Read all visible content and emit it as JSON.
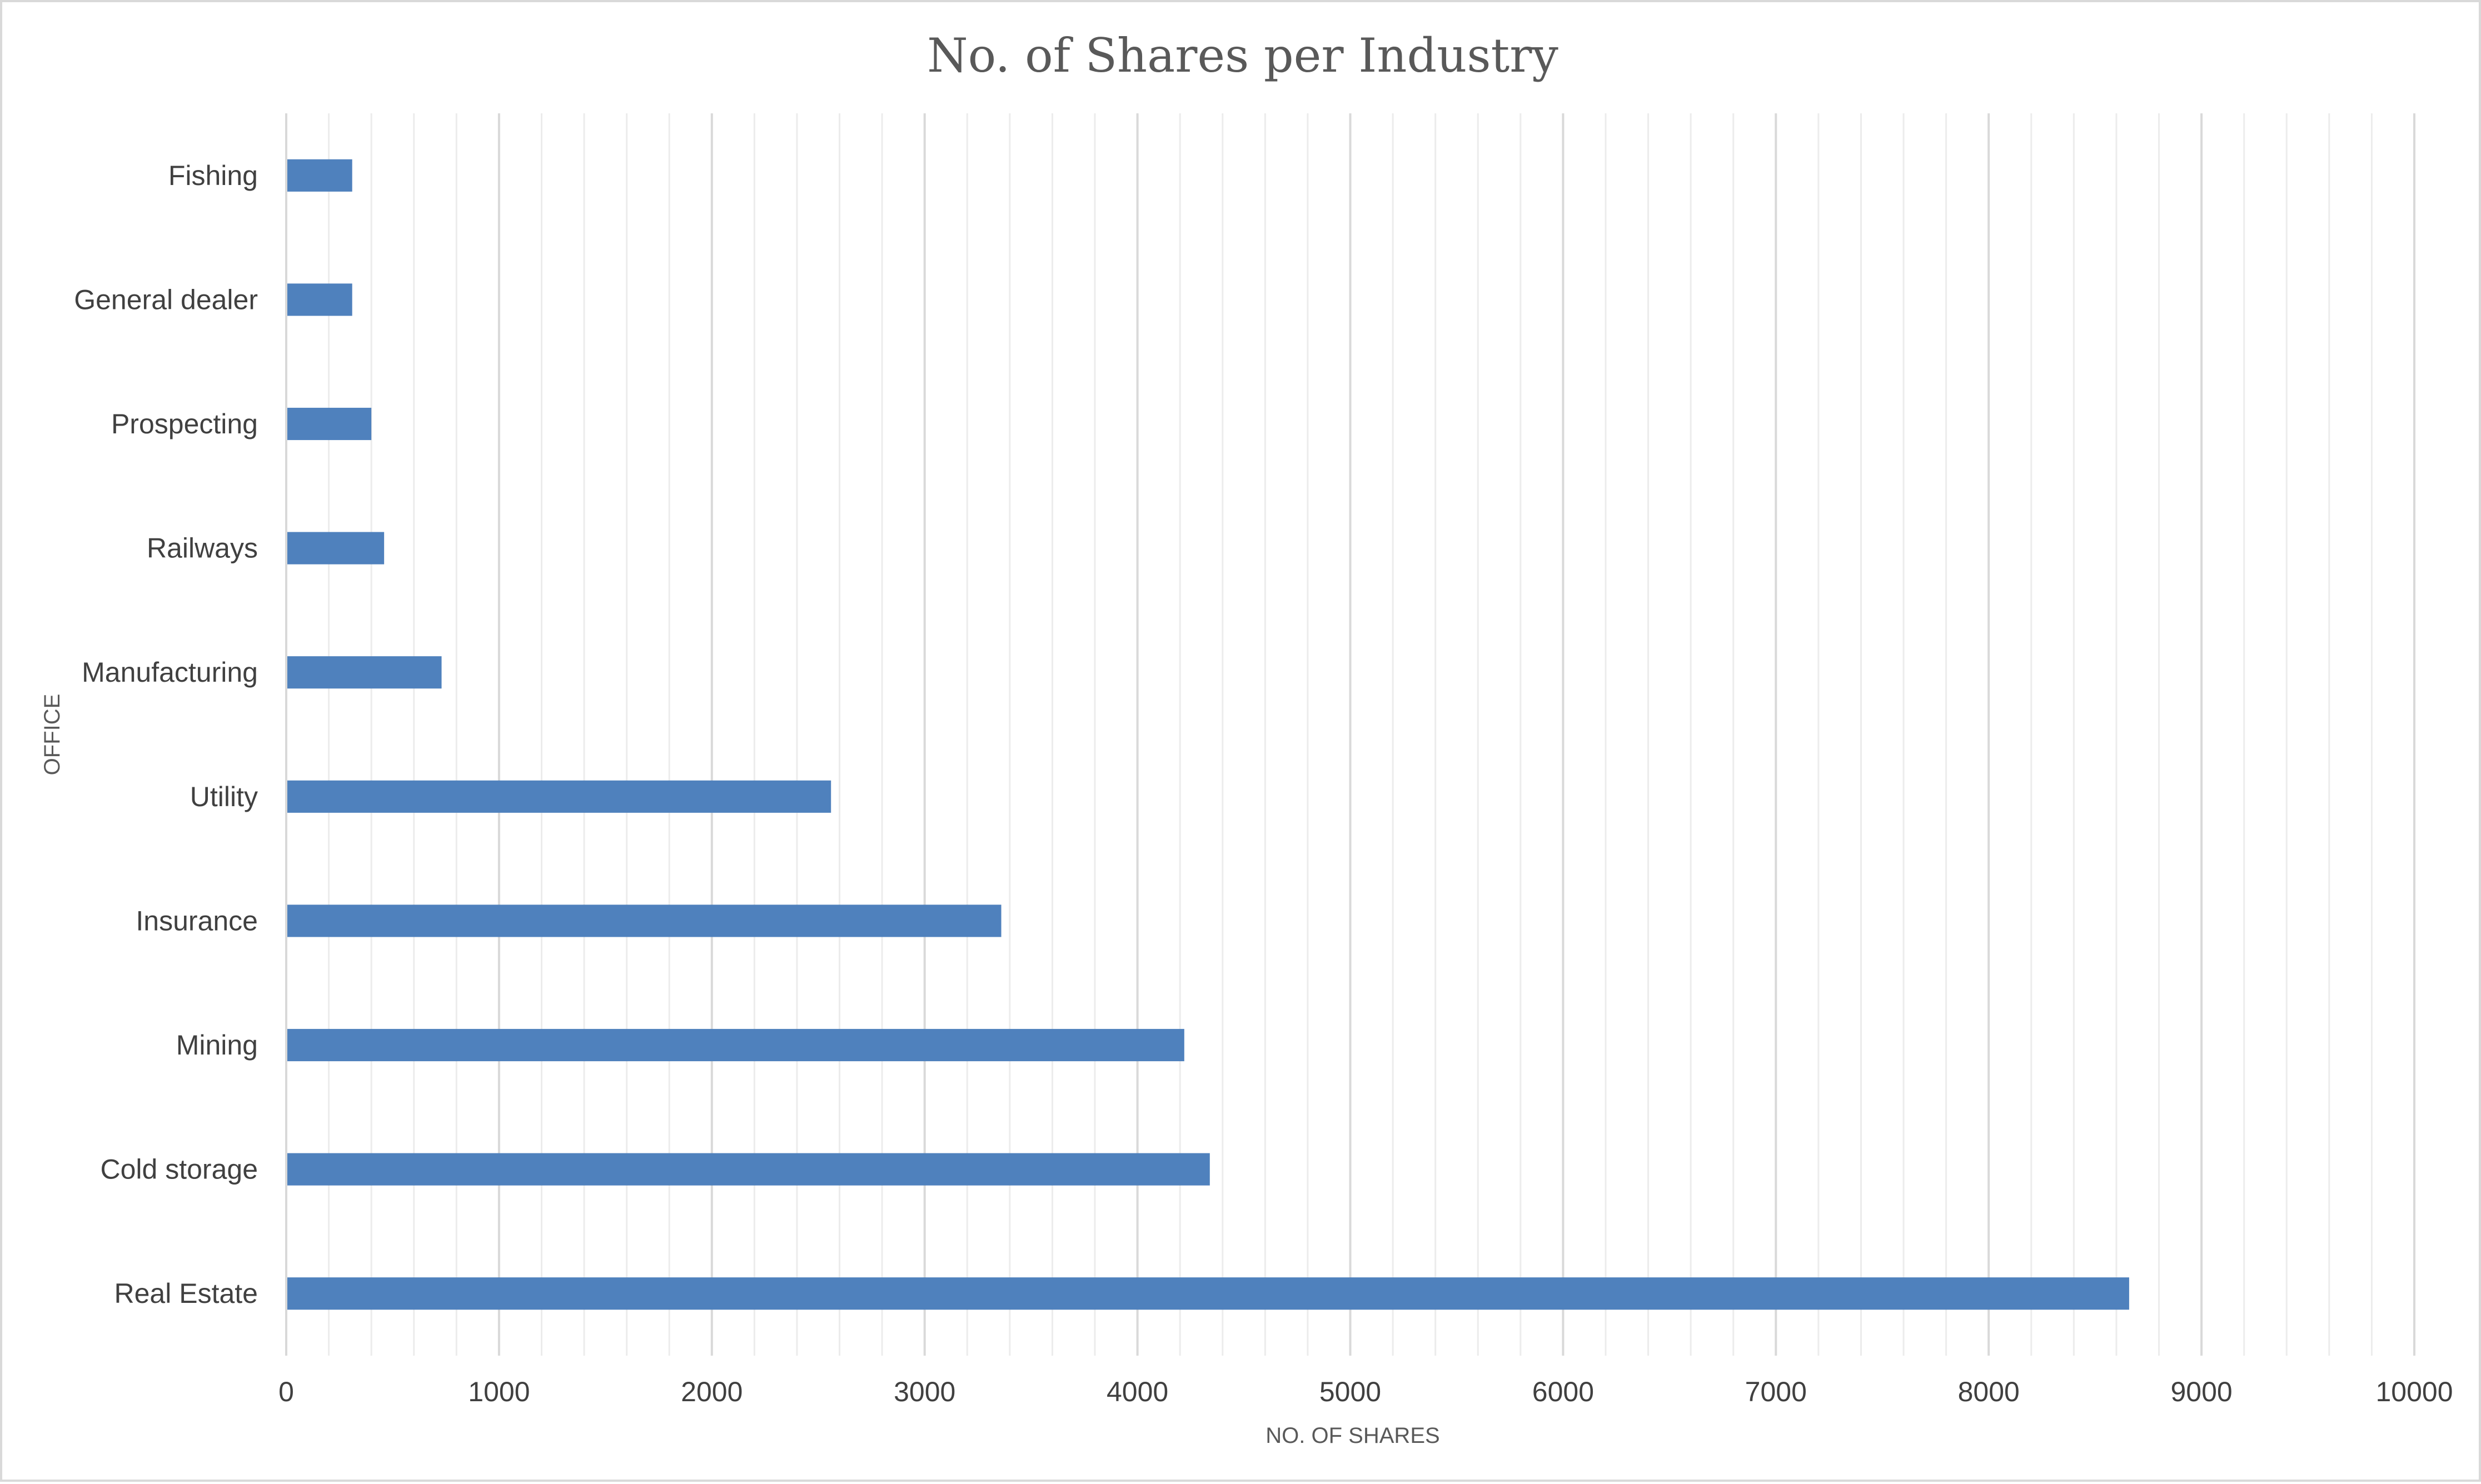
{
  "chart_data": {
    "type": "bar",
    "orientation": "horizontal",
    "title": "No. of Shares per Industry",
    "xlabel": "NO. OF SHARES",
    "ylabel": "OFFICE",
    "categories": [
      "Real Estate",
      "Cold storage",
      "Mining",
      "Insurance",
      "Utility",
      "Manufacturing",
      "Railways",
      "Prospecting",
      "General dealer",
      "Fishing"
    ],
    "values": [
      8660,
      4340,
      4220,
      3360,
      2560,
      730,
      460,
      400,
      310,
      310
    ],
    "xlim": [
      0,
      10000
    ],
    "x_ticks": [
      "0",
      "1000",
      "2000",
      "3000",
      "4000",
      "5000",
      "6000",
      "7000",
      "8000",
      "9000",
      "10000"
    ],
    "x_major_step": 1000,
    "x_minor_step": 200,
    "grid": true,
    "legend": "none",
    "bar_color": "#4f81bd"
  }
}
